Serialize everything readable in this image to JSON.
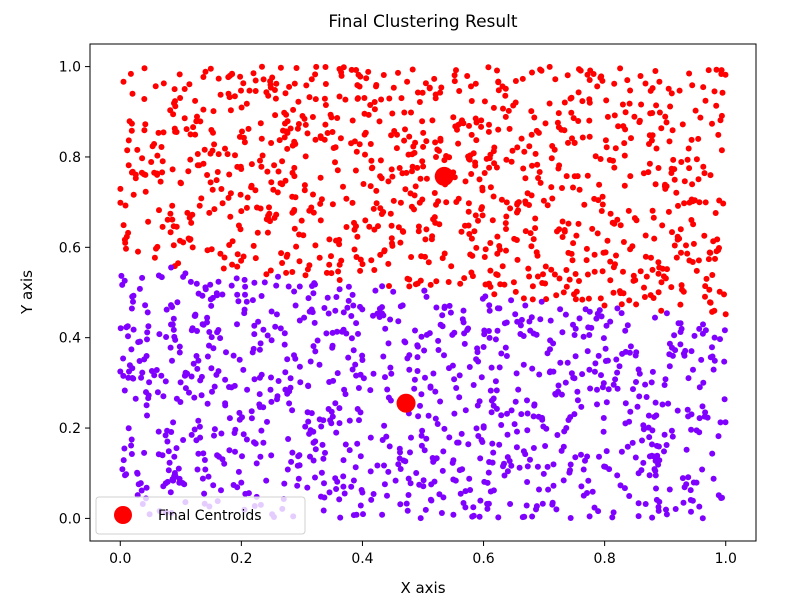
{
  "chart_data": {
    "type": "scatter",
    "title": "Final Clustering Result",
    "xlabel": "X axis",
    "ylabel": "Y axis",
    "xlim": [
      -0.05,
      1.05
    ],
    "ylim": [
      -0.05,
      1.05
    ],
    "xticks": [
      0.0,
      0.2,
      0.4,
      0.6,
      0.8,
      1.0
    ],
    "yticks": [
      0.0,
      0.2,
      0.4,
      0.6,
      0.8,
      1.0
    ],
    "tick_labels_x": [
      "0.0",
      "0.2",
      "0.4",
      "0.6",
      "0.8",
      "1.0"
    ],
    "tick_labels_y": [
      "0.0",
      "0.2",
      "0.4",
      "0.6",
      "0.8",
      "1.0"
    ],
    "grid": false,
    "legend": {
      "placement": "lower-left",
      "entries": [
        "Final Centroids"
      ]
    },
    "clusters": [
      {
        "color": "#ff0000",
        "count": 1000,
        "x_range": [
          0.0,
          1.0
        ],
        "y_range": [
          0.45,
          1.0
        ],
        "boundary": "upper"
      },
      {
        "color": "#7f00ff",
        "count": 1000,
        "x_range": [
          0.0,
          1.0
        ],
        "y_range": [
          0.0,
          0.56
        ],
        "boundary": "lower"
      }
    ],
    "series": [
      {
        "name": "Final Centroids",
        "color": "#ff0000",
        "x": [
          0.535,
          0.472
        ],
        "y": [
          0.757,
          0.255
        ]
      }
    ]
  }
}
